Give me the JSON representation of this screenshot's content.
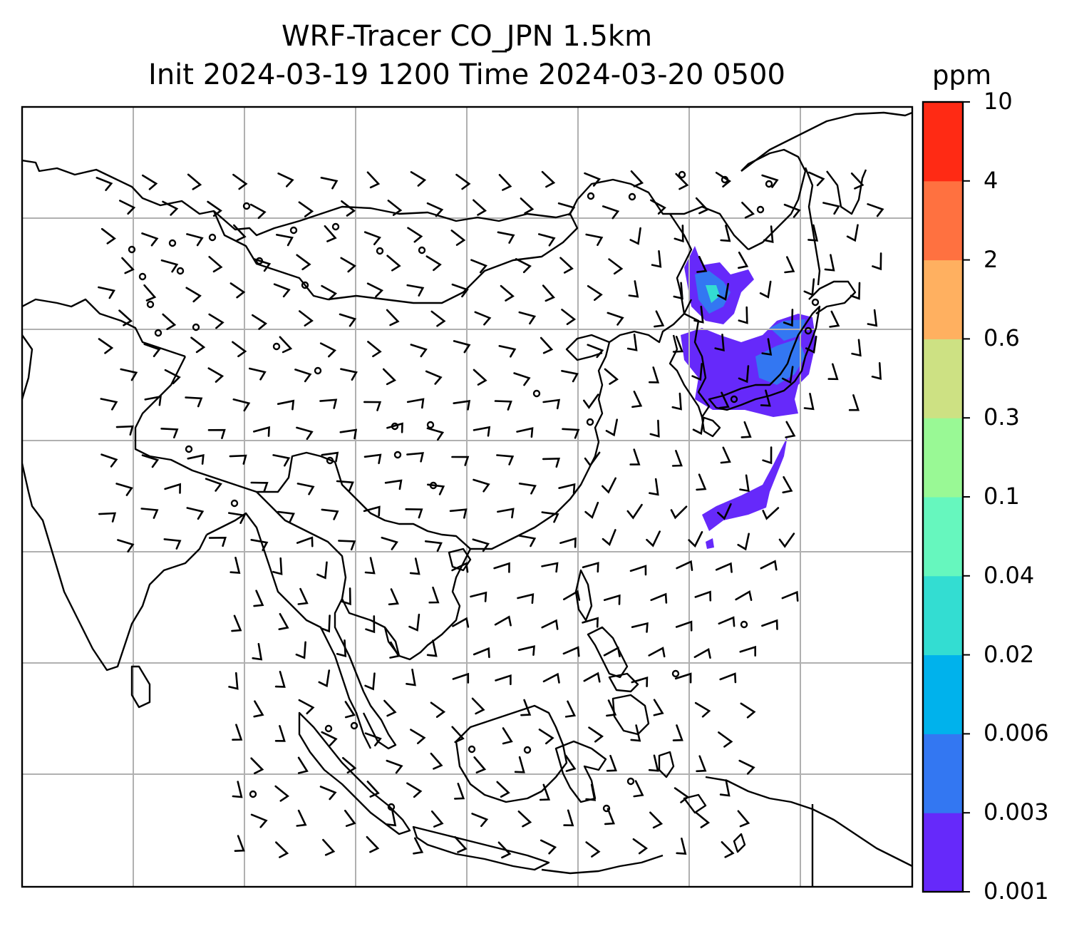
{
  "title": {
    "line1": "WRF-Tracer CO_JPN 1.5km",
    "line2": "Init 2024-03-19 1200 Time 2024-03-20 0500"
  },
  "colorbar": {
    "unit": "ppm",
    "levels": [
      "0.001",
      "0.003",
      "0.006",
      "0.02",
      "0.04",
      "0.1",
      "0.3",
      "0.6",
      "2",
      "4",
      "10"
    ],
    "colors": [
      "#6629fa",
      "#3377f2",
      "#00b2ec",
      "#33ddd2",
      "#66f7be",
      "#99f995",
      "#cde183",
      "#ffb060",
      "#ff7140",
      "#ff2a14"
    ]
  },
  "map": {
    "frame_color": "#000000",
    "grid_color": "#b0b0b0",
    "coast_color": "#000000",
    "barb_color": "#000000"
  }
}
